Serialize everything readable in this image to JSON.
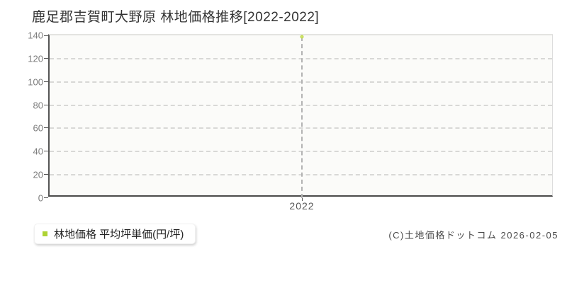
{
  "title": "鹿足郡吉賀町大野原 林地価格推移[2022-2022]",
  "chart_data": {
    "type": "line",
    "categories": [
      "2022"
    ],
    "series": [
      {
        "name": "林地価格 平均坪単価(円/坪)",
        "values": [
          139
        ]
      }
    ],
    "title": "鹿足郡吉賀町大野原 林地価格推移[2022-2022]",
    "xlabel": "",
    "ylabel": "",
    "ylim": [
      0,
      140
    ],
    "ytick_step": 20,
    "yticks": [
      0,
      20,
      40,
      60,
      80,
      100,
      120,
      140
    ],
    "grid": true,
    "legend_position": "bottom-left",
    "colors": {
      "point_stroke": "#c3dc4e",
      "point_fill": "#ffffff",
      "grid_line": "#d8d8d6",
      "guide_line": "#b3b3b3",
      "axis_dark": "#4a4a4a",
      "axis_light": "#dddddd"
    }
  },
  "legend": {
    "marker_color": "#aed334",
    "label": "林地価格 平均坪単価(円/坪)"
  },
  "footer": {
    "copyright": "(C)土地価格ドットコム 2026-02-05"
  }
}
